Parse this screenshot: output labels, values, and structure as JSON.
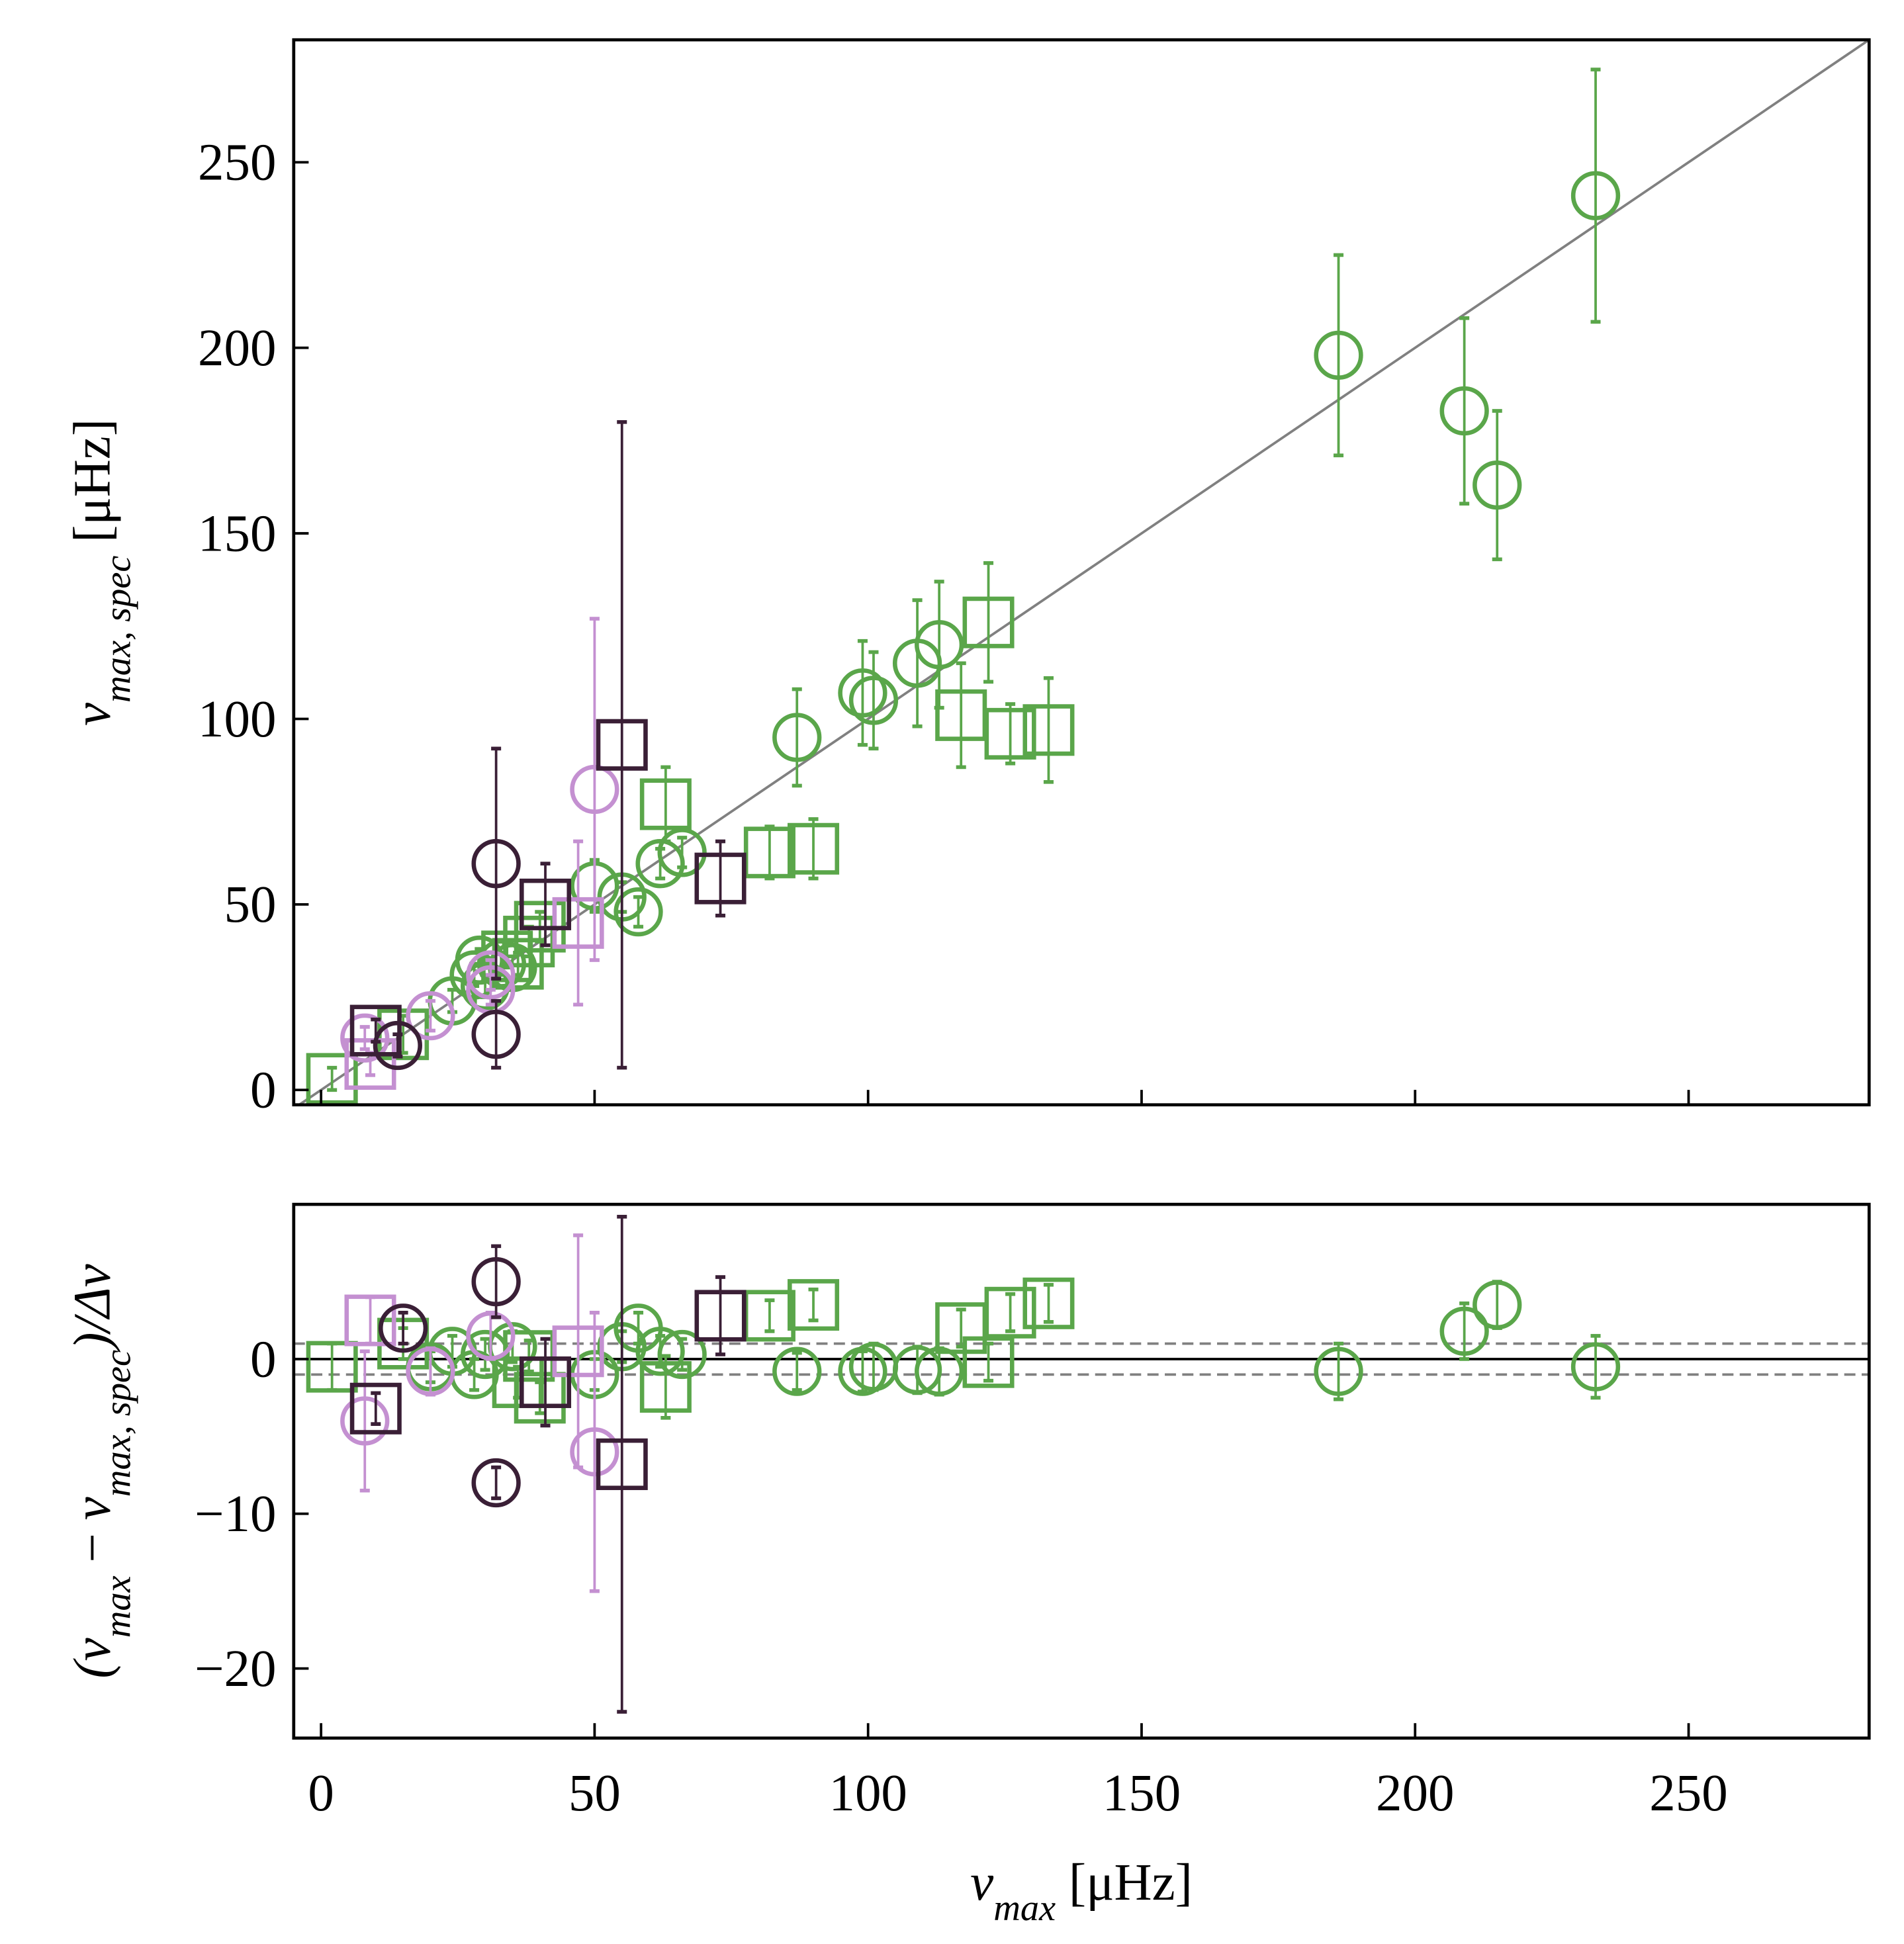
{
  "chart_data": [
    {
      "type": "scatter",
      "diagonal": true,
      "ylabel": [
        {
          "text": "ν",
          "style": "italic"
        },
        {
          "text": "max, spec",
          "style": "sub"
        },
        {
          "text": " [μHz]"
        }
      ],
      "xlim": [
        -5,
        283
      ],
      "ylim": [
        -4,
        283
      ],
      "xticks": [
        0,
        50,
        100,
        150,
        200,
        250
      ],
      "yticks": [
        0,
        50,
        100,
        150,
        200,
        250
      ],
      "series": [
        {
          "marker": "circle",
          "color": "#5aa64a",
          "x": [
            233,
            186,
            209,
            215,
            113,
            109,
            99,
            101,
            87,
            62,
            66,
            55,
            58,
            50,
            35,
            28,
            29,
            24,
            30,
            33
          ],
          "values": [
            241,
            198,
            183,
            163,
            120,
            115,
            107,
            105,
            95,
            61,
            64,
            52,
            48,
            55,
            33,
            31,
            35,
            24,
            28,
            34
          ],
          "errors": [
            34,
            27,
            25,
            20,
            17,
            17,
            14,
            13,
            13,
            4,
            4,
            4,
            4,
            7,
            3,
            3,
            3,
            3,
            3,
            3
          ]
        },
        {
          "marker": "square",
          "color": "#5aa64a",
          "x": [
            122,
            117,
            126,
            133,
            63,
            90,
            82,
            40,
            38,
            34,
            15,
            2,
            36
          ],
          "values": [
            126,
            101,
            96,
            97,
            77,
            65,
            64,
            44,
            40,
            36,
            15,
            3,
            34
          ],
          "errors": [
            16,
            14,
            8,
            14,
            10,
            8,
            7,
            4,
            4,
            3,
            5,
            3,
            3
          ]
        },
        {
          "marker": "circle",
          "color": "#c490d1",
          "x": [
            50,
            31,
            20,
            8,
            31
          ],
          "values": [
            81,
            27,
            20,
            14,
            31
          ],
          "errors": [
            46,
            4,
            4,
            3,
            4
          ]
        },
        {
          "marker": "square",
          "color": "#c490d1",
          "x": [
            47,
            9
          ],
          "values": [
            45,
            7
          ],
          "errors": [
            22,
            3
          ]
        },
        {
          "marker": "circle",
          "color": "#3a1f36",
          "x": [
            32,
            32,
            14
          ],
          "values": [
            61,
            15,
            12
          ],
          "errors": [
            31,
            9,
            3
          ]
        },
        {
          "marker": "square",
          "color": "#3a1f36",
          "x": [
            55,
            41,
            73,
            10
          ],
          "values": [
            93,
            50,
            57,
            16
          ],
          "errors": [
            87,
            11,
            10,
            3
          ]
        }
      ]
    },
    {
      "type": "scatter",
      "hlines": [
        0
      ],
      "dashed_hlines": [
        -1,
        1
      ],
      "ylabel": [
        {
          "text": "(ν",
          "style": "italic"
        },
        {
          "text": "max",
          "style": "sub"
        },
        {
          "text": " − "
        },
        {
          "text": "ν",
          "style": "italic"
        },
        {
          "text": "max, spec",
          "style": "sub"
        },
        {
          "text": ")/Δν",
          "style": "italic"
        }
      ],
      "xlabel": [
        {
          "text": "ν",
          "style": "italic"
        },
        {
          "text": "max",
          "style": "sub"
        },
        {
          "text": " [μHz]"
        }
      ],
      "xlim": [
        -5,
        283
      ],
      "ylim": [
        -24.5,
        10
      ],
      "xticks": [
        0,
        50,
        100,
        150,
        200,
        250
      ],
      "yticks": [
        {
          "value": -20,
          "label": "−20"
        },
        {
          "value": -10,
          "label": "−10"
        },
        0
      ],
      "series": [
        {
          "marker": "circle",
          "color": "#5aa64a",
          "x": [
            233,
            186,
            209,
            215,
            113,
            109,
            99,
            101,
            87,
            62,
            66,
            55,
            58,
            50,
            35,
            28,
            24,
            30,
            20
          ],
          "values": [
            -0.5,
            -0.8,
            1.8,
            3.5,
            -0.8,
            -0.7,
            -0.8,
            -0.5,
            -0.8,
            0.5,
            0.3,
            0.8,
            2,
            -1,
            0.8,
            -1,
            0.5,
            0.3,
            -0.5
          ],
          "errors": [
            2,
            1.8,
            1.8,
            1.5,
            1.5,
            1.5,
            1.3,
            1.5,
            1.2,
            1,
            1,
            1,
            1,
            1,
            1,
            1,
            1,
            1,
            1
          ]
        },
        {
          "marker": "square",
          "color": "#5aa64a",
          "x": [
            122,
            117,
            126,
            133,
            63,
            90,
            82,
            40,
            38,
            15,
            2,
            36
          ],
          "values": [
            -0.2,
            2,
            3,
            3.6,
            -1.8,
            3.5,
            2.8,
            -2.5,
            0.2,
            1,
            -0.5,
            -1.5
          ],
          "errors": [
            1.2,
            1.2,
            1.2,
            1.2,
            2,
            1,
            1,
            1,
            1,
            1,
            1.5,
            1
          ]
        },
        {
          "marker": "circle",
          "color": "#c490d1",
          "x": [
            50,
            31,
            20,
            8
          ],
          "values": [
            -6,
            1.5,
            -0.8,
            -4
          ],
          "errors": [
            9,
            1.5,
            1.5,
            4.5
          ]
        },
        {
          "marker": "square",
          "color": "#c490d1",
          "x": [
            47,
            9
          ],
          "values": [
            0.5,
            2.5
          ],
          "errors": [
            7.5,
            1.5
          ]
        },
        {
          "marker": "circle",
          "color": "#3a1f36",
          "x": [
            32,
            32,
            15
          ],
          "values": [
            5,
            -8,
            2
          ],
          "errors": [
            2.3,
            1,
            1
          ]
        },
        {
          "marker": "square",
          "color": "#3a1f36",
          "x": [
            55,
            41,
            73,
            10
          ],
          "values": [
            -6.8,
            -1.5,
            2.8,
            -3.2
          ],
          "errors": [
            16,
            2.8,
            2.5,
            1
          ]
        }
      ]
    }
  ]
}
